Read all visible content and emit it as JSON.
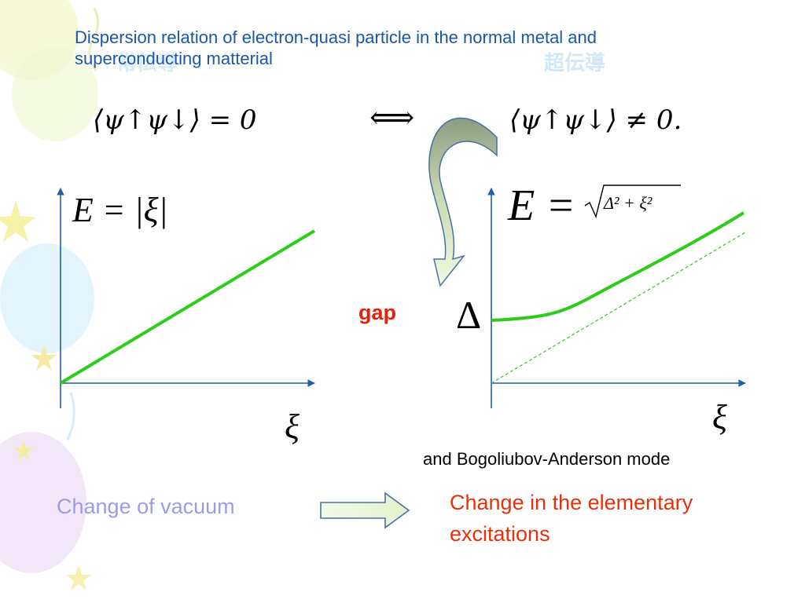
{
  "title": "Dispersion relation of electron-quasi particle in the normal metal and superconducting matterial",
  "watermark_left": "常伝導",
  "watermark_right": "超伝導",
  "equation_top_left": "⟨ψ↑ψ↓⟩ = 0",
  "equation_top_arrow": "⟺",
  "equation_top_right": "⟨ψ↑ψ↓⟩ ≠ 0.",
  "left_plot": {
    "formula": "E = |ξ|",
    "xlabel": "ξ",
    "curve_color": "#2ecc1a"
  },
  "right_plot": {
    "formula_E": "E =",
    "formula_root": "Δ² + ξ²",
    "xlabel": "ξ",
    "delta_label": "Δ",
    "gap_label": "gap",
    "curve_color": "#2ecc1a",
    "asymptote_color": "#2ecc1a"
  },
  "axis_color": "#1f5fa8",
  "bogoliubov_note": "and Bogoliubov-Anderson mode",
  "bottom_left": "Change of  vacuum",
  "bottom_right": "Change in the elementary excitations"
}
